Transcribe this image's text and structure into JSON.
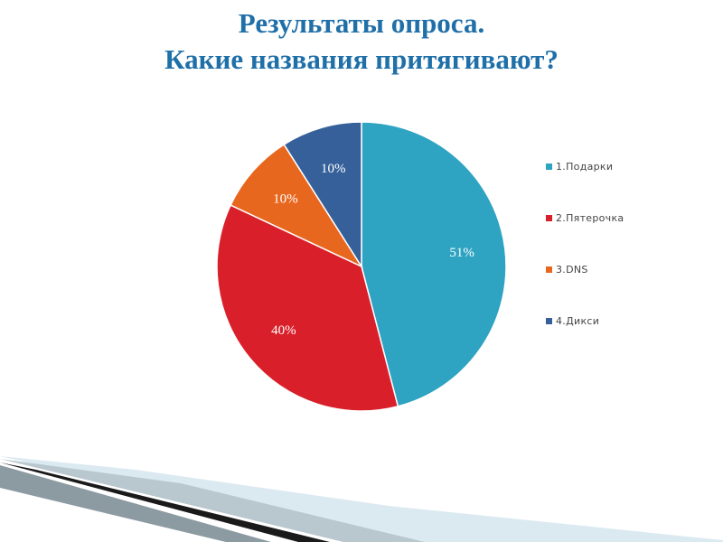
{
  "title": {
    "line1": "Результаты опроса.",
    "line2": "Какие названия притягивают?"
  },
  "chart_data": {
    "type": "pie",
    "title": "",
    "slices": [
      {
        "label": "1.Подарки",
        "value": 51,
        "value_label": "51%",
        "color": "#2ea3c2"
      },
      {
        "label": "2.Пятерочка",
        "value": 40,
        "value_label": "40%",
        "color": "#d9202a"
      },
      {
        "label": "3.DNS",
        "value": 10,
        "value_label": "10%",
        "color": "#e8671f"
      },
      {
        "label": "4.Дикси",
        "value": 10,
        "value_label": "10%",
        "color": "#35609a"
      }
    ],
    "legend_position": "right"
  }
}
